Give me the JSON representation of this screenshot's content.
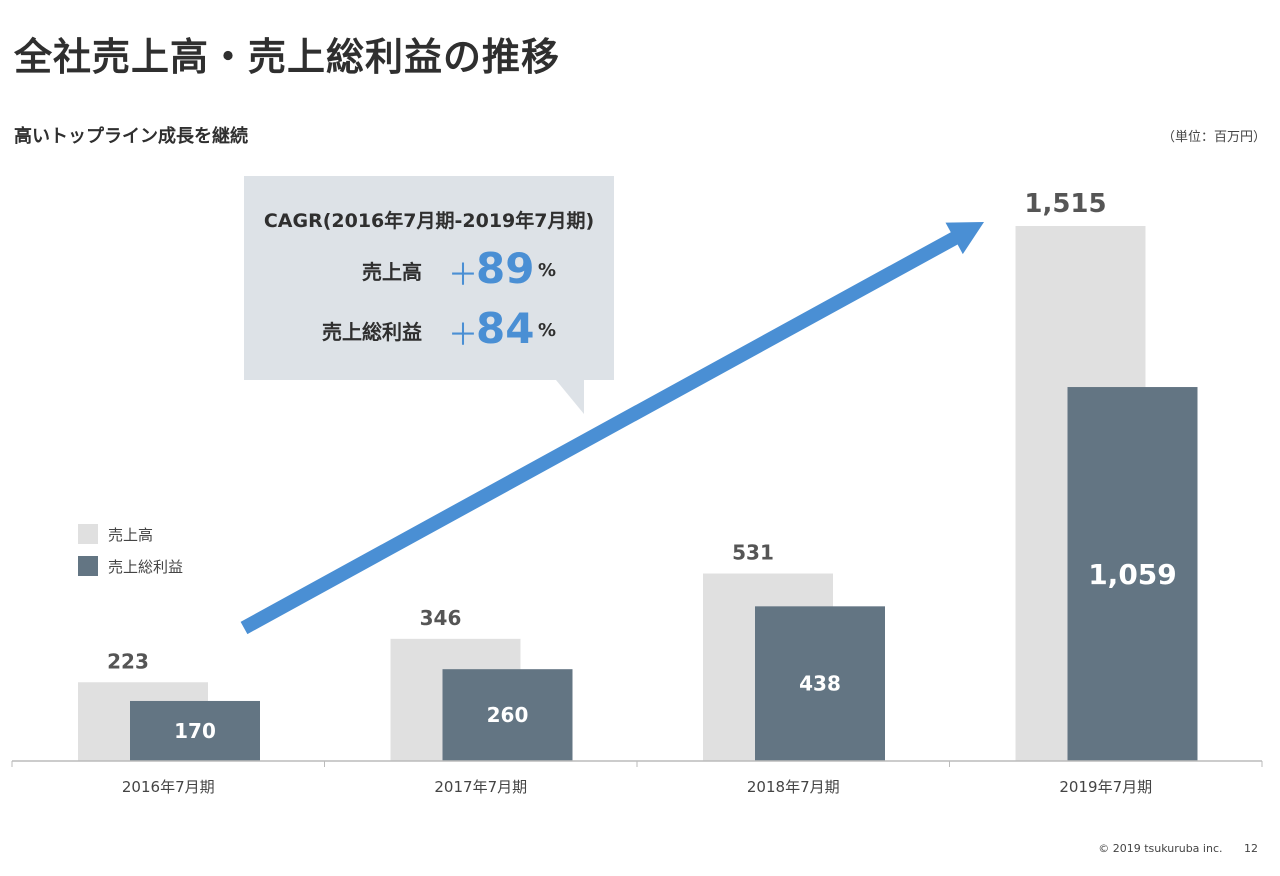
{
  "title": "全社売上高・売上総利益の推移",
  "subtitle": "高いトップライン成長を継続",
  "unit": "（単位：百万円）",
  "legend": [
    {
      "label": "売上高",
      "color": "#e0e0e0"
    },
    {
      "label": "売上総利益",
      "color": "#637583"
    }
  ],
  "callout": {
    "title": "CAGR(2016年7月期-2019年7月期)",
    "rows": [
      {
        "label": "売上高",
        "plus": "＋",
        "value": "89",
        "unit": "%"
      },
      {
        "label": "売上総利益",
        "plus": "＋",
        "value": "84",
        "unit": "%"
      }
    ]
  },
  "footer": {
    "copyright": "© 2019 tsukuruba inc.",
    "page": "12"
  },
  "colors": {
    "accent": "#4a8fd4",
    "revenue": "#e0e0e0",
    "gross_profit": "#637583"
  },
  "chart_data": {
    "type": "bar",
    "categories": [
      "2016年7月期",
      "2017年7月期",
      "2018年7月期",
      "2019年7月期"
    ],
    "series": [
      {
        "name": "売上高",
        "values": [
          223,
          346,
          531,
          1515
        ],
        "labels": [
          "223",
          "346",
          "531",
          "1,515"
        ]
      },
      {
        "name": "売上総利益",
        "values": [
          170,
          260,
          438,
          1059
        ],
        "labels": [
          "170",
          "260",
          "438",
          "1,059"
        ]
      }
    ],
    "ylim": [
      0,
      1600
    ],
    "grid": false,
    "legend_position": "left"
  }
}
